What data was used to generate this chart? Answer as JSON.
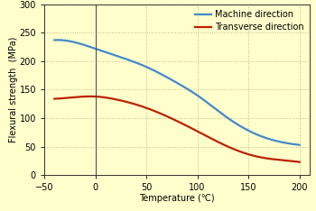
{
  "title": "",
  "xlabel": "Temperature (℃)",
  "ylabel": "Flexural strength  (MPa)",
  "background_color": "#ffffcc",
  "xlim": [
    -50,
    210
  ],
  "ylim": [
    0,
    300
  ],
  "xticks": [
    -50,
    0,
    50,
    100,
    150,
    200
  ],
  "yticks": [
    0,
    50,
    100,
    150,
    200,
    250,
    300
  ],
  "grid_color": "#bbbb88",
  "machine_color": "#4488cc",
  "transverse_color": "#bb2200",
  "machine_label": "Machine direction",
  "transverse_label": "Transverse direction",
  "machine_x": [
    -40,
    -10,
    0,
    20,
    50,
    80,
    100,
    130,
    160,
    185,
    200
  ],
  "machine_y": [
    237,
    228,
    222,
    210,
    190,
    162,
    140,
    100,
    70,
    57,
    53
  ],
  "transverse_x": [
    -40,
    -10,
    0,
    20,
    50,
    80,
    100,
    130,
    160,
    185,
    200
  ],
  "transverse_y": [
    134,
    138,
    138,
    133,
    118,
    95,
    77,
    50,
    32,
    26,
    23
  ],
  "legend_fontsize": 7,
  "axis_fontsize": 7,
  "tick_fontsize": 7,
  "line_width": 1.6
}
